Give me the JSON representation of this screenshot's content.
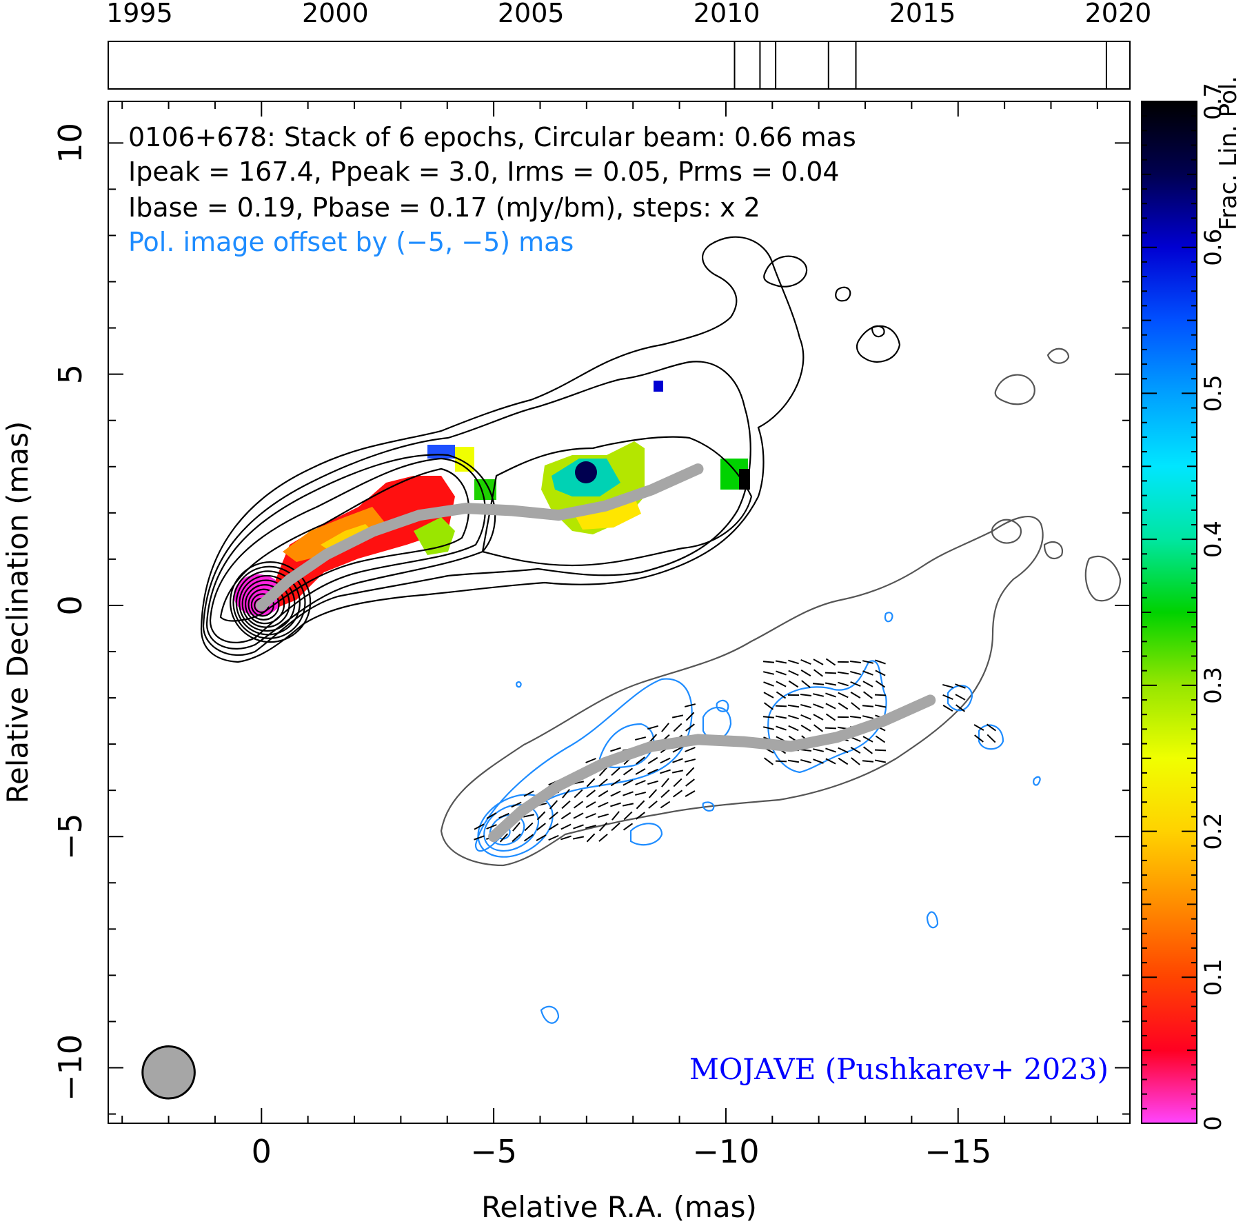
{
  "chart_data": {
    "type": "scatter",
    "source": "0106+678",
    "annotations": {
      "line1": "0106+678: Stack of 6 epochs, Circular beam: 0.66 mas",
      "line2": "Ipeak = 167.4, Ppeak = 3.0, Irms = 0.05, Prms = 0.04",
      "line3": "Ibase = 0.19, Pbase = 0.17 (mJy/bm), steps: x 2",
      "offset_note": "Pol. image offset by (−5, −5) mas",
      "credit": "MOJAVE (Pushkarev+ 2023)"
    },
    "xlabel": "Relative R.A. (mas)",
    "ylabel": "Relative Declination (mas)",
    "xlim": [
      3.3,
      -18.7
    ],
    "ylim": [
      -11.2,
      10.9
    ],
    "x_ticks": [
      0,
      -5,
      -10,
      -15
    ],
    "x_tick_labels": [
      "0",
      "−5",
      "−10",
      "−15"
    ],
    "y_ticks": [
      10,
      5,
      0,
      -5,
      -10
    ],
    "y_tick_labels": [
      "10",
      "5",
      "0",
      "−5",
      "−10"
    ],
    "beam_diameter_mas": 0.66,
    "beam_center": [
      2.0,
      -10.1
    ],
    "ridge_line": {
      "x": [
        0.0,
        -0.6,
        -1.4,
        -2.4,
        -3.4,
        -4.4,
        -5.4,
        -6.4,
        -7.4,
        -8.4,
        -9.4
      ],
      "y": [
        0.0,
        0.55,
        1.1,
        1.6,
        1.95,
        2.1,
        2.05,
        1.95,
        2.15,
        2.5,
        2.95
      ]
    },
    "pol_ridge_line": {
      "x": [
        -5.0,
        -5.6,
        -6.4,
        -7.4,
        -8.4,
        -9.4,
        -10.4,
        -11.4,
        -12.4,
        -13.4,
        -14.4
      ],
      "y": [
        -5.0,
        -4.45,
        -3.9,
        -3.4,
        -3.05,
        -2.9,
        -2.95,
        -3.05,
        -2.85,
        -2.5,
        -2.05
      ]
    },
    "intensity_contours": {
      "base_mJy_per_beam": 0.19,
      "step_factor": 2,
      "peak_mJy_per_beam": 167.4,
      "peak_position": [
        0.0,
        0.0
      ]
    },
    "pol_contours": {
      "base_mJy_per_beam": 0.17,
      "peak_mJy_per_beam": 3.0,
      "peak_position": [
        -5.2,
        -4.9
      ]
    },
    "colorbar": {
      "label": "Frac. Lin. Pol.",
      "range": [
        0,
        0.7
      ],
      "ticks": [
        0,
        0.1,
        0.2,
        0.3,
        0.4,
        0.5,
        0.6,
        0.7
      ],
      "tick_labels": [
        "0",
        "0.1",
        "0.2",
        "0.3",
        "0.4",
        "0.5",
        "0.6",
        "0.7"
      ],
      "stops": [
        "#ff44ff",
        "#ff0022",
        "#ff4400",
        "#ff8c00",
        "#ffd200",
        "#f0ff00",
        "#96e600",
        "#00d200",
        "#00e6a0",
        "#00e6ff",
        "#00a0ff",
        "#0050ff",
        "#0000d2",
        "#000050",
        "#000000"
      ]
    },
    "timeline": {
      "xlim": [
        1994.2,
        2020.3
      ],
      "ticks": [
        1995,
        2000,
        2005,
        2010,
        2015,
        2020
      ],
      "tick_labels": [
        "1995",
        "2000",
        "2005",
        "2010",
        "2015",
        "2020"
      ],
      "epochs": [
        2010.2,
        2010.85,
        2011.25,
        2012.6,
        2013.3,
        2019.7
      ]
    }
  }
}
